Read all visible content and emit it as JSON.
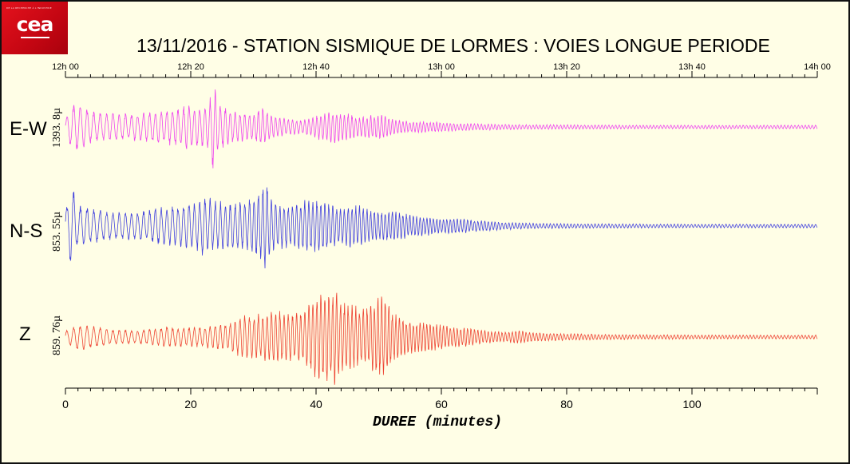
{
  "logo": {
    "word": "cea",
    "tag": "DE LA RECHERCHE À L'INDUSTRIE"
  },
  "colors": {
    "background": "#fffee6",
    "ew": "#ee44ee",
    "ns": "#4040dd",
    "z": "#ee4433",
    "axis": "#000000"
  },
  "chart_data": {
    "type": "line",
    "title": "13/11/2016  -  STATION SISMIQUE DE LORMES : VOIES LONGUE PERIODE",
    "xlabel": "DUREE (minutes)",
    "ylabel": "",
    "xlim": [
      0,
      120
    ],
    "x_ticks": [
      0,
      20,
      40,
      60,
      80,
      100
    ],
    "x_tick_labels": [
      "0",
      "20",
      "40",
      "60",
      "80",
      "100"
    ],
    "top_ticks": [
      0,
      20,
      40,
      60,
      80,
      100,
      120
    ],
    "top_tick_labels": [
      "12h 00",
      "12h 20",
      "12h 40",
      "13h 00",
      "13h 20",
      "13h 40",
      "14h 00"
    ],
    "grid": false,
    "legend": "none",
    "series": [
      {
        "name": "E-W",
        "scale_label": "1393. 8µ",
        "color": "#ee44ee",
        "envelope_minutes": [
          0,
          1,
          2,
          4,
          6,
          8,
          10,
          12,
          14,
          16,
          18,
          19,
          20,
          21,
          22,
          23,
          23.6,
          24.5,
          26,
          28,
          30,
          31.5,
          33,
          35,
          37,
          39,
          41,
          43,
          45,
          47,
          49,
          51,
          53,
          55,
          58,
          61,
          64,
          67,
          70,
          74,
          78,
          85,
          95,
          105,
          120
        ],
        "envelope_amplitude": [
          0.15,
          0.5,
          0.55,
          0.35,
          0.3,
          0.3,
          0.28,
          0.3,
          0.35,
          0.38,
          0.42,
          0.5,
          0.5,
          0.42,
          0.45,
          0.55,
          1.0,
          0.5,
          0.38,
          0.33,
          0.3,
          0.45,
          0.25,
          0.18,
          0.15,
          0.2,
          0.3,
          0.35,
          0.3,
          0.2,
          0.28,
          0.25,
          0.15,
          0.12,
          0.12,
          0.09,
          0.08,
          0.07,
          0.06,
          0.05,
          0.05,
          0.045,
          0.04,
          0.04,
          0.04
        ]
      },
      {
        "name": "N-S",
        "scale_label": "853. 55µ",
        "color": "#4040dd",
        "envelope_minutes": [
          0,
          1,
          2,
          4,
          6,
          8,
          10,
          12,
          14,
          16,
          18,
          20,
          21,
          22,
          24,
          26,
          28,
          30,
          31,
          32,
          33,
          35,
          36,
          38,
          40,
          42,
          44,
          46,
          48,
          50,
          52,
          54,
          56,
          58,
          60,
          62,
          64,
          66,
          68,
          70,
          75,
          80,
          90,
          100,
          110,
          120
        ],
        "envelope_amplitude": [
          0.35,
          0.9,
          0.45,
          0.4,
          0.35,
          0.3,
          0.3,
          0.32,
          0.38,
          0.42,
          0.45,
          0.5,
          0.55,
          0.65,
          0.55,
          0.5,
          0.55,
          0.6,
          0.75,
          1.0,
          0.55,
          0.5,
          0.42,
          0.55,
          0.6,
          0.5,
          0.4,
          0.48,
          0.4,
          0.3,
          0.35,
          0.28,
          0.22,
          0.2,
          0.15,
          0.17,
          0.15,
          0.12,
          0.1,
          0.08,
          0.06,
          0.05,
          0.045,
          0.04,
          0.04,
          0.04
        ]
      },
      {
        "name": "Z",
        "scale_label": "859. 76µ",
        "color": "#ee4433",
        "envelope_minutes": [
          0,
          1,
          2,
          4,
          6,
          8,
          10,
          12,
          14,
          16,
          18,
          20,
          22,
          24,
          26,
          28,
          30,
          32,
          34,
          36,
          38,
          40,
          42,
          43,
          44,
          46,
          48,
          50,
          51,
          52,
          54,
          56,
          58,
          60,
          62,
          64,
          66,
          68,
          70,
          72,
          75,
          80,
          90,
          100,
          110,
          120
        ],
        "envelope_amplitude": [
          0.12,
          0.2,
          0.28,
          0.22,
          0.2,
          0.15,
          0.15,
          0.15,
          0.18,
          0.22,
          0.2,
          0.2,
          0.22,
          0.28,
          0.28,
          0.45,
          0.45,
          0.5,
          0.55,
          0.5,
          0.55,
          0.85,
          0.95,
          1.0,
          0.75,
          0.65,
          0.6,
          0.8,
          0.9,
          0.55,
          0.38,
          0.3,
          0.3,
          0.25,
          0.2,
          0.2,
          0.15,
          0.12,
          0.1,
          0.14,
          0.09,
          0.07,
          0.05,
          0.045,
          0.04,
          0.04
        ]
      }
    ]
  }
}
